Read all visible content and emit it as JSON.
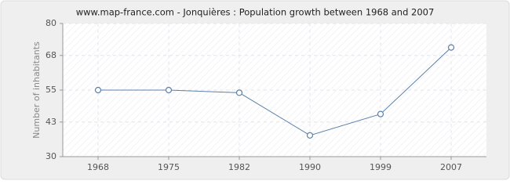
{
  "chart_data": {
    "type": "line",
    "title": "www.map-france.com - Jonquières : Population growth between 1968 and 2007",
    "y_label": "Number of inhabitants",
    "categories": [
      "1968",
      "1975",
      "1982",
      "1990",
      "1999",
      "2007"
    ],
    "series": [
      {
        "name": "Population",
        "color": "#5b80a8",
        "values": [
          55,
          55,
          54,
          38,
          46,
          71
        ]
      }
    ],
    "ylim": [
      30,
      80
    ],
    "yticks": [
      30,
      43,
      55,
      68,
      80
    ],
    "grid": true
  }
}
